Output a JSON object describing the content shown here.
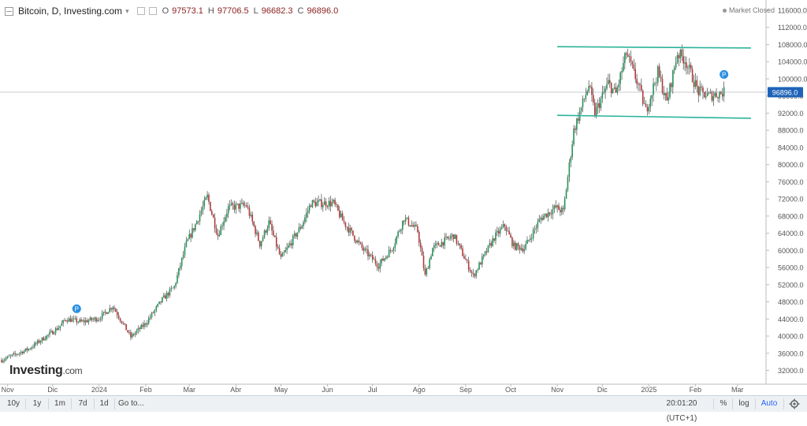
{
  "header": {
    "symbol": "Bitcoin, D, Investing.com",
    "caret": "▾",
    "ohlc": {
      "o_label": "O",
      "o_value": "97573.1",
      "h_label": "H",
      "h_value": "97706.5",
      "l_label": "L",
      "l_value": "96682.3",
      "c_label": "C",
      "c_value": "96896.0"
    },
    "market_status": "Market Closed"
  },
  "logo": {
    "main": "Investing",
    "suffix": ".com"
  },
  "colors": {
    "up": "#26915b",
    "down": "#b23a3a",
    "wick": "#2b2b2b",
    "channel": "#2bb39a",
    "price_label_bg": "#1e63b8",
    "marker": "#2c8fe0",
    "grid_axis": "#b7bcc2"
  },
  "toolbar": {
    "ranges": [
      "10y",
      "1y",
      "1m",
      "7d",
      "1d"
    ],
    "goto": "Go to...",
    "clock": "20:01:20 (UTC+1)",
    "percent": "%",
    "log": "log",
    "auto": "Auto",
    "settings_icon": "gear-icon"
  },
  "chart_data": {
    "type": "candlestick",
    "title": "Bitcoin, D, Investing.com",
    "x_tick_labels": [
      "Nov",
      "Dic",
      "2024",
      "Feb",
      "Mar",
      "Abr",
      "May",
      "Jun",
      "Jul",
      "Ago",
      "Sep",
      "Oct",
      "Nov",
      "Dic",
      "2025",
      "Feb",
      "Mar"
    ],
    "y_tick_labels": [
      "116000.0",
      "112000.0",
      "108000.0",
      "104000.0",
      "100000.0",
      "96000.0",
      "92000.0",
      "88000.0",
      "84000.0",
      "80000.0",
      "76000.0",
      "72000.0",
      "68000.0",
      "64000.0",
      "60000.0",
      "56000.0",
      "52000.0",
      "48000.0",
      "44000.0",
      "40000.0",
      "36000.0",
      "32000.0"
    ],
    "ylim": [
      30000,
      117000
    ],
    "last_price": 96896.0,
    "last_price_label": "96896.0",
    "markers": [
      {
        "label": "P",
        "date": "2023-12-17"
      },
      {
        "label": "P",
        "date": "2025-02-20"
      }
    ],
    "channel_lines": [
      {
        "from": {
          "date": "2024-11-01",
          "value": 107500
        },
        "to": {
          "date": "2025-03-10",
          "value": 107200
        }
      },
      {
        "from": {
          "date": "2024-11-01",
          "value": 91500
        },
        "to": {
          "date": "2025-03-10",
          "value": 90800
        }
      }
    ],
    "close_keypoints": [
      [
        "2023-10-28",
        34400
      ],
      [
        "2023-11-15",
        37000
      ],
      [
        "2023-12-05",
        42000
      ],
      [
        "2023-12-10",
        44000
      ],
      [
        "2023-12-20",
        43300
      ],
      [
        "2024-01-01",
        44200
      ],
      [
        "2024-01-10",
        47000
      ],
      [
        "2024-01-22",
        39800
      ],
      [
        "2024-02-01",
        43000
      ],
      [
        "2024-02-12",
        48500
      ],
      [
        "2024-02-20",
        51500
      ],
      [
        "2024-02-28",
        61500
      ],
      [
        "2024-03-05",
        66000
      ],
      [
        "2024-03-13",
        72500
      ],
      [
        "2024-03-20",
        63500
      ],
      [
        "2024-03-27",
        70000
      ],
      [
        "2024-04-08",
        70500
      ],
      [
        "2024-04-17",
        61500
      ],
      [
        "2024-04-23",
        66500
      ],
      [
        "2024-05-01",
        58000
      ],
      [
        "2024-05-15",
        66000
      ],
      [
        "2024-05-21",
        71000
      ],
      [
        "2024-06-05",
        71000
      ],
      [
        "2024-06-11",
        67000
      ],
      [
        "2024-06-24",
        60500
      ],
      [
        "2024-07-05",
        56500
      ],
      [
        "2024-07-14",
        60500
      ],
      [
        "2024-07-22",
        67500
      ],
      [
        "2024-07-31",
        64500
      ],
      [
        "2024-08-05",
        54000
      ],
      [
        "2024-08-10",
        60500
      ],
      [
        "2024-08-24",
        63500
      ],
      [
        "2024-09-06",
        54000
      ],
      [
        "2024-09-20",
        63000
      ],
      [
        "2024-09-27",
        65800
      ],
      [
        "2024-10-03",
        61000
      ],
      [
        "2024-10-10",
        60500
      ],
      [
        "2024-10-21",
        67500
      ],
      [
        "2024-10-31",
        70000
      ],
      [
        "2024-11-05",
        69000
      ],
      [
        "2024-11-12",
        88000
      ],
      [
        "2024-11-22",
        98500
      ],
      [
        "2024-11-26",
        92000
      ],
      [
        "2024-12-05",
        99000
      ],
      [
        "2024-12-10",
        96500
      ],
      [
        "2024-12-17",
        106000
      ],
      [
        "2024-12-25",
        98500
      ],
      [
        "2024-12-30",
        92500
      ],
      [
        "2025-01-07",
        101500
      ],
      [
        "2025-01-13",
        94500
      ],
      [
        "2025-01-20",
        106000
      ],
      [
        "2025-01-25",
        104500
      ],
      [
        "2025-02-03",
        97000
      ],
      [
        "2025-02-10",
        96000
      ],
      [
        "2025-02-20",
        96896
      ]
    ]
  }
}
